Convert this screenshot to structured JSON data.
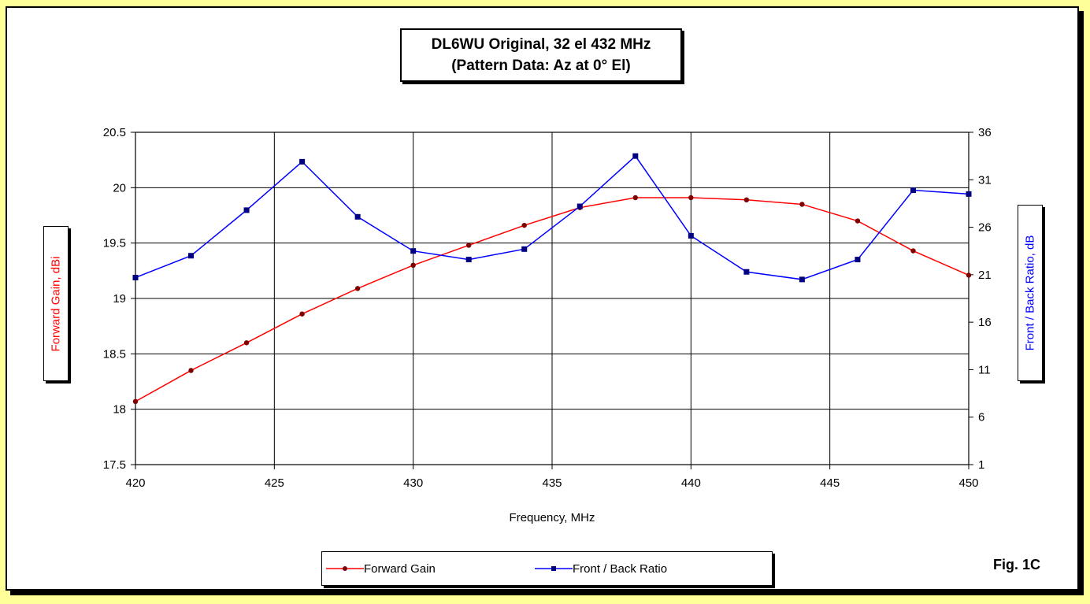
{
  "chart_data": {
    "type": "line",
    "title_line1": "DL6WU Original, 32 el 432 MHz",
    "title_line2": "(Pattern Data: Az at 0° El)",
    "xlabel": "Frequency, MHz",
    "ylabel_left": "Forward Gain,  dBi",
    "ylabel_right": "Front / Back Ratio,  dB",
    "xlim": [
      420,
      450
    ],
    "ylim_left": [
      17.5,
      20.5
    ],
    "ylim_right": [
      1,
      36
    ],
    "x_ticks": [
      420,
      425,
      430,
      435,
      440,
      445,
      450
    ],
    "y_left_ticks": [
      "17.5",
      "18",
      "18.5",
      "19",
      "19.5",
      "20",
      "20.5"
    ],
    "y_right_ticks": [
      "1",
      "6",
      "11",
      "16",
      "21",
      "26",
      "31",
      "36"
    ],
    "x": [
      420,
      422,
      424,
      426,
      428,
      430,
      432,
      434,
      436,
      438,
      440,
      442,
      444,
      446,
      448,
      450
    ],
    "series": [
      {
        "name": "Forward Gain",
        "axis": "left",
        "color": "#ff0000",
        "marker_color": "#800000",
        "values": [
          18.07,
          18.35,
          18.6,
          18.86,
          19.09,
          19.3,
          19.48,
          19.66,
          19.82,
          19.91,
          19.91,
          19.89,
          19.85,
          19.7,
          19.43,
          19.21
        ]
      },
      {
        "name": "Front / Back Ratio",
        "axis": "right",
        "color": "#0000ff",
        "marker_color": "#000080",
        "values": [
          20.7,
          23.0,
          27.8,
          32.9,
          27.1,
          23.5,
          22.6,
          23.7,
          28.2,
          33.5,
          25.1,
          21.3,
          20.5,
          22.6,
          29.9,
          29.5
        ]
      }
    ],
    "grid": true,
    "legend_position": "bottom"
  },
  "fig_label": "Fig. 1C"
}
